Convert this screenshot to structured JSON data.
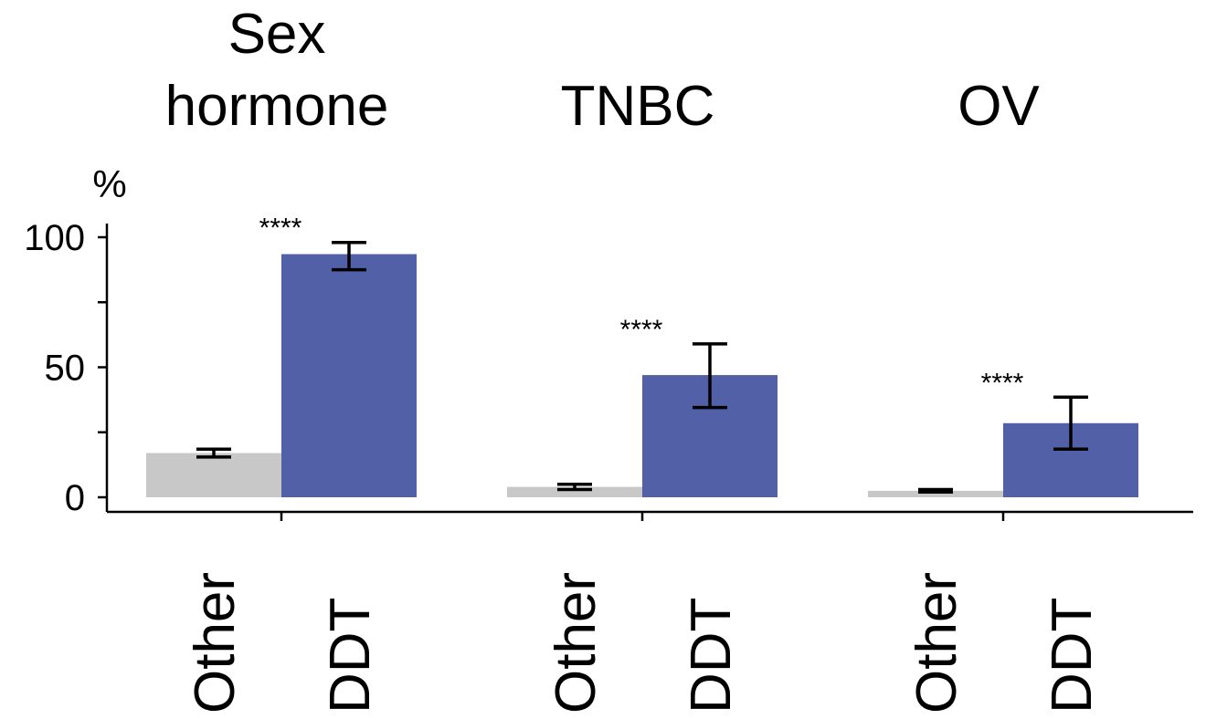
{
  "chart_data": {
    "type": "bar",
    "ylabel": "%",
    "ylim": [
      0,
      100
    ],
    "yticks": [
      0,
      50,
      100
    ],
    "grid": false,
    "legend": "none",
    "bar_labels": [
      "Other",
      "DDT"
    ],
    "colors": {
      "Other": "#c8c8c8",
      "DDT": "#5260a8"
    },
    "groups": [
      {
        "name": "Sex hormone",
        "title_lines": [
          "Sex",
          "hormone"
        ],
        "significance": "****",
        "bars": [
          {
            "label": "Other",
            "value": 17,
            "err_low": 15.5,
            "err_high": 18.5
          },
          {
            "label": "DDT",
            "value": 93.5,
            "err_low": 87.5,
            "err_high": 98
          }
        ]
      },
      {
        "name": "TNBC",
        "title_lines": [
          "TNBC"
        ],
        "significance": "****",
        "bars": [
          {
            "label": "Other",
            "value": 4,
            "err_low": 3,
            "err_high": 5
          },
          {
            "label": "DDT",
            "value": 47,
            "err_low": 34.5,
            "err_high": 59
          }
        ]
      },
      {
        "name": "OV",
        "title_lines": [
          "OV"
        ],
        "significance": "****",
        "bars": [
          {
            "label": "Other",
            "value": 2.5,
            "err_low": 2,
            "err_high": 3
          },
          {
            "label": "DDT",
            "value": 28.5,
            "err_low": 18.5,
            "err_high": 38.5
          }
        ]
      }
    ]
  }
}
